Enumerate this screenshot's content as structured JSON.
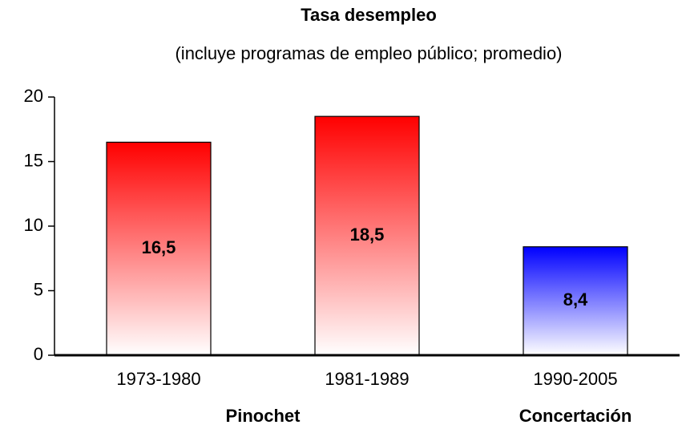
{
  "chart_data": {
    "type": "bar",
    "title": "Tasa desempleo",
    "subtitle": "(incluye programas de empleo público; promedio)",
    "categories": [
      "1973-1980",
      "1981-1989",
      "1990-2005"
    ],
    "values": [
      16.5,
      18.5,
      8.4
    ],
    "value_labels": [
      "16,5",
      "18,5",
      "8,4"
    ],
    "colors": [
      "#ff0000",
      "#ff0000",
      "#0000ff"
    ],
    "groups": [
      {
        "name": "Pinochet",
        "categories": [
          "1973-1980",
          "1981-1989"
        ]
      },
      {
        "name": "Concertación",
        "categories": [
          "1990-2005"
        ]
      }
    ],
    "ylim": [
      0,
      20
    ],
    "yticks": [
      0,
      5,
      10,
      15,
      20
    ],
    "grid": false
  }
}
